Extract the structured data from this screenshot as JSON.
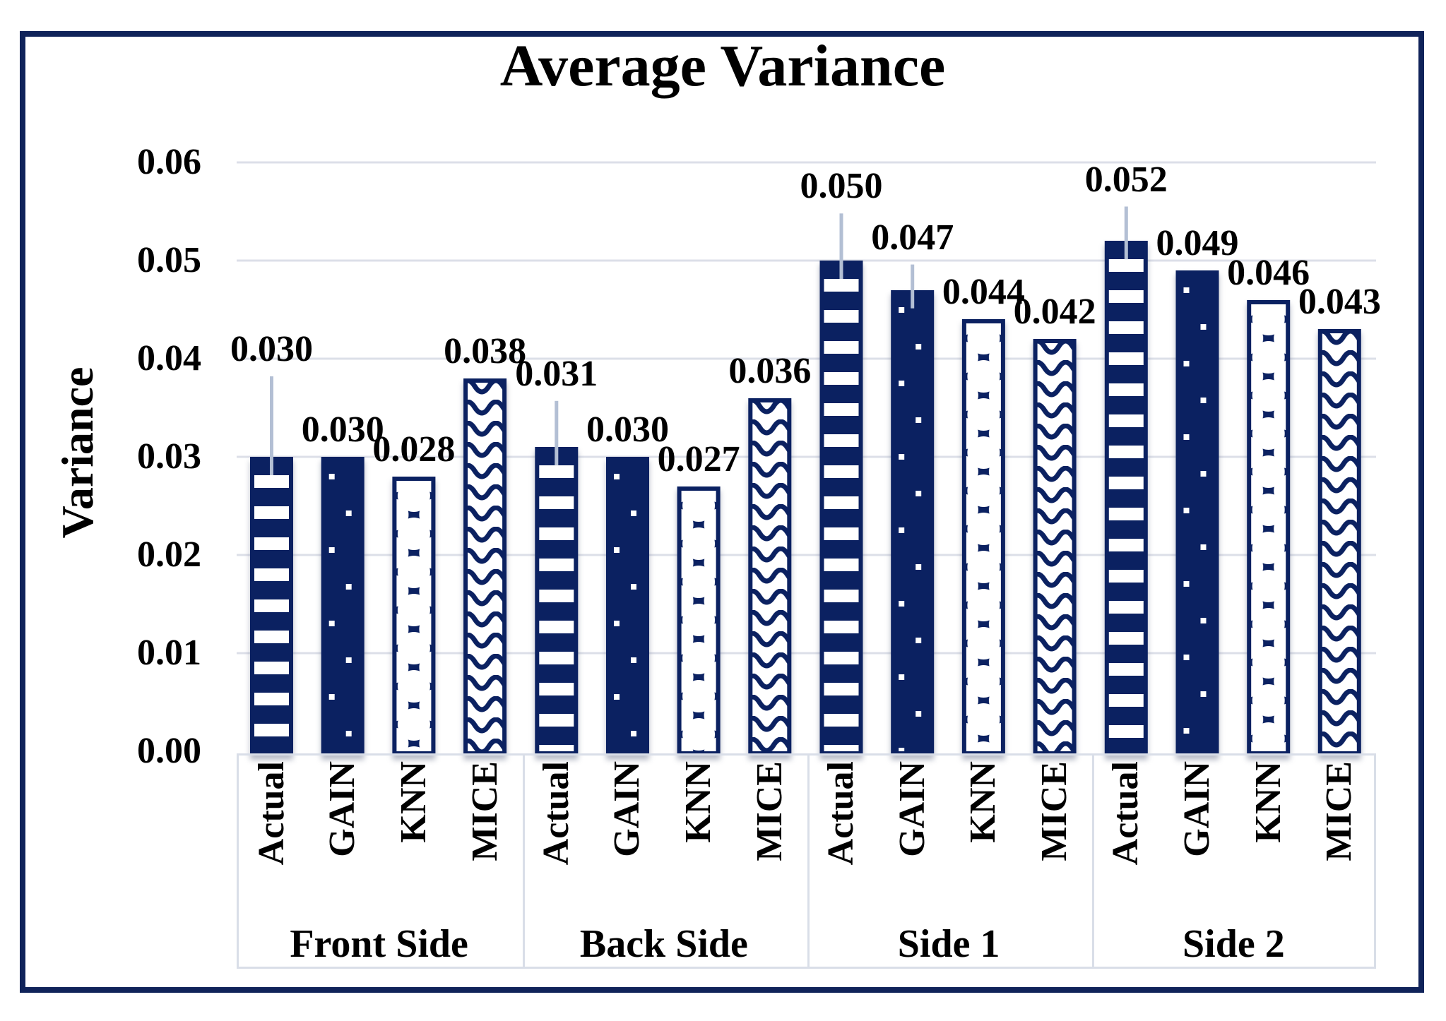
{
  "chart": {
    "title": "Average Variance",
    "y_axis": {
      "title": "Variance",
      "ticks": [
        {
          "label": "0.00",
          "value": 0.0
        },
        {
          "label": "0.01",
          "value": 0.01
        },
        {
          "label": "0.02",
          "value": 0.02
        },
        {
          "label": "0.03",
          "value": 0.03
        },
        {
          "label": "0.04",
          "value": 0.04
        },
        {
          "label": "0.05",
          "value": 0.05
        },
        {
          "label": "0.06",
          "value": 0.06
        }
      ]
    },
    "chart_data": {
      "type": "bar",
      "title": "Average Variance",
      "xlabel": "",
      "ylabel": "Variance",
      "ylim": [
        0,
        0.06
      ],
      "grid": true,
      "legend_position": "none",
      "categories": [
        "Front Side",
        "Back Side",
        "Side 1",
        "Side 2"
      ],
      "series_labels": [
        "Actual",
        "GAIN",
        "KNN",
        "MICE"
      ],
      "groups": [
        {
          "category": "Front Side",
          "bars": [
            {
              "name": "Actual",
              "value": 0.03,
              "label": "0.030",
              "error_up": 0.0082,
              "pattern": "horizontal-stripes"
            },
            {
              "name": "GAIN",
              "value": 0.03,
              "label": "0.030",
              "error_up": null,
              "pattern": "dots"
            },
            {
              "name": "KNN",
              "value": 0.028,
              "label": "0.028",
              "error_up": null,
              "pattern": "shingle"
            },
            {
              "name": "MICE",
              "value": 0.038,
              "label": "0.038",
              "error_up": null,
              "pattern": "wave"
            }
          ]
        },
        {
          "category": "Back Side",
          "bars": [
            {
              "name": "Actual",
              "value": 0.031,
              "label": "0.031",
              "error_up": 0.0047,
              "pattern": "horizontal-stripes"
            },
            {
              "name": "GAIN",
              "value": 0.03,
              "label": "0.030",
              "error_up": null,
              "pattern": "dots"
            },
            {
              "name": "KNN",
              "value": 0.027,
              "label": "0.027",
              "error_up": null,
              "pattern": "shingle"
            },
            {
              "name": "MICE",
              "value": 0.036,
              "label": "0.036",
              "error_up": null,
              "pattern": "wave"
            }
          ]
        },
        {
          "category": "Side 1",
          "bars": [
            {
              "name": "Actual",
              "value": 0.05,
              "label": "0.050",
              "error_up": 0.0048,
              "pattern": "horizontal-stripes"
            },
            {
              "name": "GAIN",
              "value": 0.047,
              "label": "0.047",
              "error_up": 0.0026,
              "pattern": "dots"
            },
            {
              "name": "KNN",
              "value": 0.044,
              "label": "0.044",
              "error_up": null,
              "pattern": "shingle"
            },
            {
              "name": "MICE",
              "value": 0.042,
              "label": "0.042",
              "error_up": null,
              "pattern": "wave"
            }
          ]
        },
        {
          "category": "Side 2",
          "bars": [
            {
              "name": "Actual",
              "value": 0.052,
              "label": "0.052",
              "error_up": 0.0035,
              "pattern": "horizontal-stripes"
            },
            {
              "name": "GAIN",
              "value": 0.049,
              "label": "0.049",
              "error_up": null,
              "pattern": "dots"
            },
            {
              "name": "KNN",
              "value": 0.046,
              "label": "0.046",
              "error_up": null,
              "pattern": "shingle"
            },
            {
              "name": "MICE",
              "value": 0.043,
              "label": "0.043",
              "error_up": null,
              "pattern": "wave"
            }
          ]
        }
      ]
    },
    "colors": {
      "bar_navy": "#0b2161",
      "frame_border": "#10235a",
      "gridline": "#dcdfe8",
      "error_bar": "#b3bfd4",
      "table_border": "#d9dee8",
      "text": "#000000",
      "background": "#ffffff"
    }
  }
}
